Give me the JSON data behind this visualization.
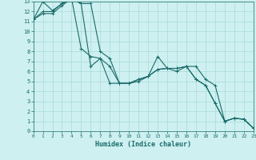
{
  "xlabel": "Humidex (Indice chaleur)",
  "xlim": [
    0,
    23
  ],
  "ylim": [
    0,
    13
  ],
  "xticks": [
    0,
    1,
    2,
    3,
    4,
    5,
    6,
    7,
    8,
    9,
    10,
    11,
    12,
    13,
    14,
    15,
    16,
    17,
    18,
    19,
    20,
    21,
    22,
    23
  ],
  "yticks": [
    0,
    1,
    2,
    3,
    4,
    5,
    6,
    7,
    8,
    9,
    10,
    11,
    12,
    13
  ],
  "bg_color": "#cef0f0",
  "grid_color": "#aadada",
  "line_color": "#1a6b6b",
  "series": [
    [
      11.2,
      13.0,
      12.1,
      12.8,
      13.3,
      12.8,
      12.8,
      8.0,
      7.3,
      4.8,
      4.8,
      5.0,
      5.5,
      7.5,
      6.3,
      6.3,
      6.5,
      6.5,
      5.2,
      4.6,
      1.0,
      1.3,
      1.2,
      0.3
    ],
    [
      11.2,
      12.0,
      12.0,
      12.8,
      13.3,
      12.8,
      6.5,
      7.3,
      6.5,
      4.8,
      4.8,
      5.2,
      5.5,
      6.2,
      6.3,
      6.3,
      6.5,
      5.2,
      4.6,
      2.8,
      1.0,
      1.3,
      1.2,
      0.3
    ],
    [
      11.2,
      11.8,
      11.8,
      12.6,
      13.3,
      8.3,
      7.5,
      7.3,
      4.8,
      4.8,
      4.8,
      5.2,
      5.5,
      6.2,
      6.3,
      6.0,
      6.5,
      5.2,
      4.6,
      2.8,
      1.0,
      1.3,
      1.2,
      0.3
    ]
  ]
}
